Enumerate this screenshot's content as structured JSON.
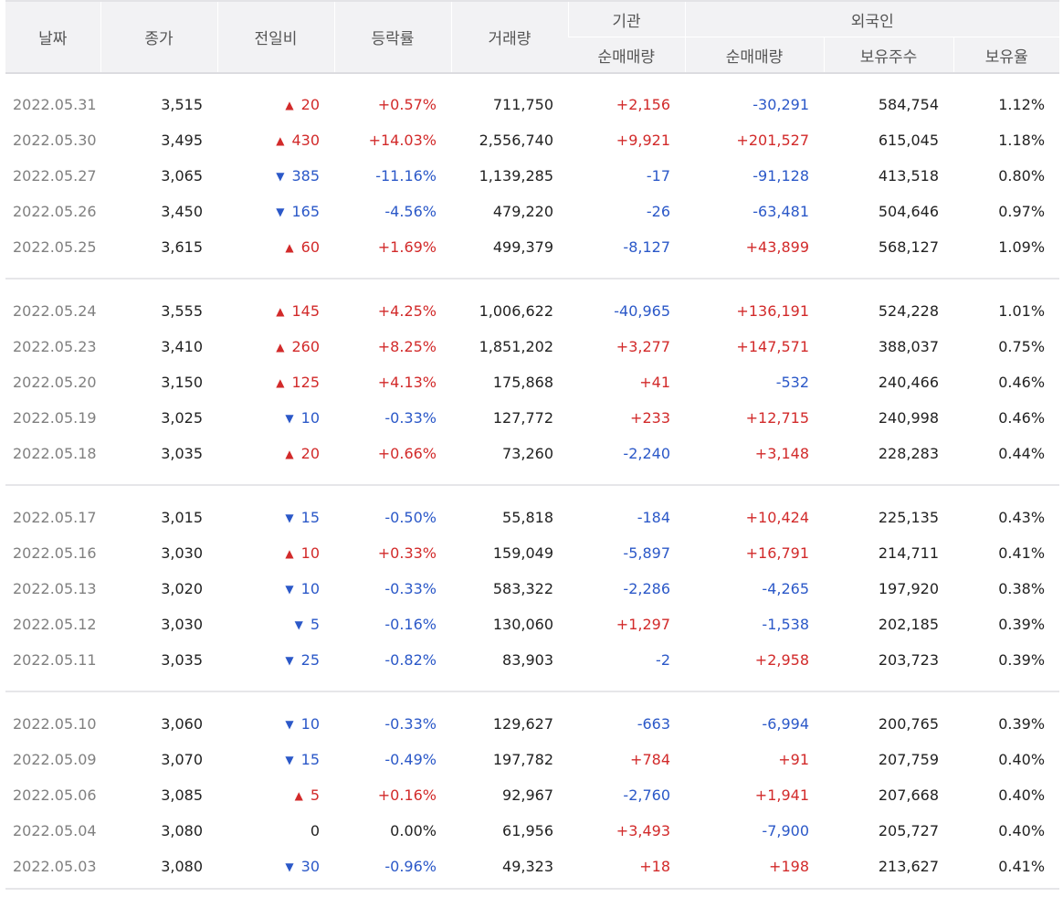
{
  "headers": {
    "date": "날짜",
    "close": "종가",
    "change": "전일비",
    "rate": "등락률",
    "volume": "거래량",
    "institution": "기관",
    "inst_net": "순매매량",
    "foreign": "외국인",
    "foreign_net": "순매매량",
    "foreign_holdings": "보유주수",
    "foreign_ratio": "보유율"
  },
  "colors": {
    "up": "#d22a2a",
    "down": "#2b58c8"
  },
  "groups": [
    [
      {
        "date": "2022.05.31",
        "close": "3,515",
        "dir": "up",
        "change": "20",
        "rate": "+0.57%",
        "volume": "711,750",
        "inst": "+2,156",
        "foreign": "-30,291",
        "holdings": "584,754",
        "ratio": "1.12%"
      },
      {
        "date": "2022.05.30",
        "close": "3,495",
        "dir": "up",
        "change": "430",
        "rate": "+14.03%",
        "volume": "2,556,740",
        "inst": "+9,921",
        "foreign": "+201,527",
        "holdings": "615,045",
        "ratio": "1.18%"
      },
      {
        "date": "2022.05.27",
        "close": "3,065",
        "dir": "down",
        "change": "385",
        "rate": "-11.16%",
        "volume": "1,139,285",
        "inst": "-17",
        "foreign": "-91,128",
        "holdings": "413,518",
        "ratio": "0.80%"
      },
      {
        "date": "2022.05.26",
        "close": "3,450",
        "dir": "down",
        "change": "165",
        "rate": "-4.56%",
        "volume": "479,220",
        "inst": "-26",
        "foreign": "-63,481",
        "holdings": "504,646",
        "ratio": "0.97%"
      },
      {
        "date": "2022.05.25",
        "close": "3,615",
        "dir": "up",
        "change": "60",
        "rate": "+1.69%",
        "volume": "499,379",
        "inst": "-8,127",
        "foreign": "+43,899",
        "holdings": "568,127",
        "ratio": "1.09%"
      }
    ],
    [
      {
        "date": "2022.05.24",
        "close": "3,555",
        "dir": "up",
        "change": "145",
        "rate": "+4.25%",
        "volume": "1,006,622",
        "inst": "-40,965",
        "foreign": "+136,191",
        "holdings": "524,228",
        "ratio": "1.01%"
      },
      {
        "date": "2022.05.23",
        "close": "3,410",
        "dir": "up",
        "change": "260",
        "rate": "+8.25%",
        "volume": "1,851,202",
        "inst": "+3,277",
        "foreign": "+147,571",
        "holdings": "388,037",
        "ratio": "0.75%"
      },
      {
        "date": "2022.05.20",
        "close": "3,150",
        "dir": "up",
        "change": "125",
        "rate": "+4.13%",
        "volume": "175,868",
        "inst": "+41",
        "foreign": "-532",
        "holdings": "240,466",
        "ratio": "0.46%"
      },
      {
        "date": "2022.05.19",
        "close": "3,025",
        "dir": "down",
        "change": "10",
        "rate": "-0.33%",
        "volume": "127,772",
        "inst": "+233",
        "foreign": "+12,715",
        "holdings": "240,998",
        "ratio": "0.46%"
      },
      {
        "date": "2022.05.18",
        "close": "3,035",
        "dir": "up",
        "change": "20",
        "rate": "+0.66%",
        "volume": "73,260",
        "inst": "-2,240",
        "foreign": "+3,148",
        "holdings": "228,283",
        "ratio": "0.44%"
      }
    ],
    [
      {
        "date": "2022.05.17",
        "close": "3,015",
        "dir": "down",
        "change": "15",
        "rate": "-0.50%",
        "volume": "55,818",
        "inst": "-184",
        "foreign": "+10,424",
        "holdings": "225,135",
        "ratio": "0.43%"
      },
      {
        "date": "2022.05.16",
        "close": "3,030",
        "dir": "up",
        "change": "10",
        "rate": "+0.33%",
        "volume": "159,049",
        "inst": "-5,897",
        "foreign": "+16,791",
        "holdings": "214,711",
        "ratio": "0.41%"
      },
      {
        "date": "2022.05.13",
        "close": "3,020",
        "dir": "down",
        "change": "10",
        "rate": "-0.33%",
        "volume": "583,322",
        "inst": "-2,286",
        "foreign": "-4,265",
        "holdings": "197,920",
        "ratio": "0.38%"
      },
      {
        "date": "2022.05.12",
        "close": "3,030",
        "dir": "down",
        "change": "5",
        "rate": "-0.16%",
        "volume": "130,060",
        "inst": "+1,297",
        "foreign": "-1,538",
        "holdings": "202,185",
        "ratio": "0.39%"
      },
      {
        "date": "2022.05.11",
        "close": "3,035",
        "dir": "down",
        "change": "25",
        "rate": "-0.82%",
        "volume": "83,903",
        "inst": "-2",
        "foreign": "+2,958",
        "holdings": "203,723",
        "ratio": "0.39%"
      }
    ],
    [
      {
        "date": "2022.05.10",
        "close": "3,060",
        "dir": "down",
        "change": "10",
        "rate": "-0.33%",
        "volume": "129,627",
        "inst": "-663",
        "foreign": "-6,994",
        "holdings": "200,765",
        "ratio": "0.39%"
      },
      {
        "date": "2022.05.09",
        "close": "3,070",
        "dir": "down",
        "change": "15",
        "rate": "-0.49%",
        "volume": "197,782",
        "inst": "+784",
        "foreign": "+91",
        "holdings": "207,759",
        "ratio": "0.40%"
      },
      {
        "date": "2022.05.06",
        "close": "3,085",
        "dir": "up",
        "change": "5",
        "rate": "+0.16%",
        "volume": "92,967",
        "inst": "-2,760",
        "foreign": "+1,941",
        "holdings": "207,668",
        "ratio": "0.40%"
      },
      {
        "date": "2022.05.04",
        "close": "3,080",
        "dir": "flat",
        "change": "0",
        "rate": "0.00%",
        "volume": "61,956",
        "inst": "+3,493",
        "foreign": "-7,900",
        "holdings": "205,727",
        "ratio": "0.40%"
      },
      {
        "date": "2022.05.03",
        "close": "3,080",
        "dir": "down",
        "change": "30",
        "rate": "-0.96%",
        "volume": "49,323",
        "inst": "+18",
        "foreign": "+198",
        "holdings": "213,627",
        "ratio": "0.41%"
      }
    ]
  ]
}
